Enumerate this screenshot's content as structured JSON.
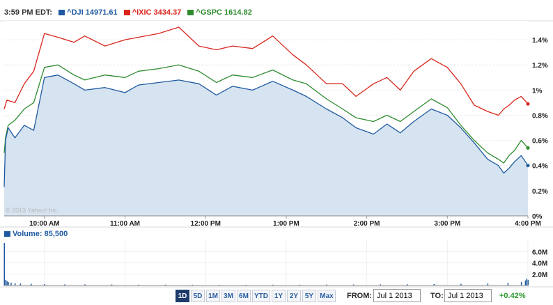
{
  "header": {
    "time": "3:59 PM EDT:",
    "legend": [
      {
        "label": "^DJI 14971.61",
        "color": "#1f5aa0"
      },
      {
        "label": "^IXIC 3434.37",
        "color": "#d9261c"
      },
      {
        "label": "^GSPC 1614.82",
        "color": "#2e8b2e"
      }
    ]
  },
  "watermark": "© 2013 Yahoo! Inc.",
  "volume_label": "Volume: 85,500",
  "controls": {
    "ranges": [
      "1D",
      "5D",
      "1M",
      "3M",
      "6M",
      "YTD",
      "1Y",
      "2Y",
      "5Y",
      "Max"
    ],
    "active_range": "1D",
    "from_label": "FROM:",
    "from_value": "Jul 1 2013",
    "to_label": "TO:",
    "to_value": "Jul 1 2013",
    "change": "+0.42%"
  },
  "chart_data": [
    {
      "type": "line",
      "title": "",
      "x_ticks": [
        "10:00 AM",
        "11:00 AM",
        "12:00 PM",
        "1:00 PM",
        "2:00 PM",
        "3:00 PM",
        "4:00 PM"
      ],
      "y_ticks": [
        "0%",
        "0.2%",
        "0.4%",
        "0.6%",
        "0.8%",
        "1%",
        "1.2%",
        "1.4%"
      ],
      "ylim": [
        0,
        1.55
      ],
      "x_unit": "minutes after 9:30 AM",
      "xlim": [
        0,
        390
      ],
      "series": [
        {
          "name": "^DJI",
          "color": "#1f5aa0",
          "fill": "#d6e3f0",
          "x": [
            0,
            1,
            3,
            8,
            15,
            22,
            30,
            40,
            52,
            60,
            75,
            90,
            100,
            115,
            130,
            145,
            158,
            170,
            185,
            200,
            215,
            225,
            240,
            252,
            262,
            275,
            285,
            295,
            305,
            318,
            330,
            340,
            350,
            360,
            368,
            372,
            376,
            380,
            385,
            390
          ],
          "y": [
            0.23,
            0.6,
            0.7,
            0.62,
            0.72,
            0.68,
            1.1,
            1.12,
            1.05,
            1.0,
            1.02,
            0.98,
            1.04,
            1.06,
            1.08,
            1.05,
            0.96,
            1.03,
            1.0,
            1.07,
            1.0,
            0.95,
            0.85,
            0.78,
            0.7,
            0.65,
            0.73,
            0.66,
            0.75,
            0.85,
            0.8,
            0.7,
            0.58,
            0.45,
            0.4,
            0.34,
            0.38,
            0.43,
            0.48,
            0.4
          ]
        },
        {
          "name": "^IXIC",
          "color": "#d9261c",
          "x": [
            0,
            2,
            8,
            15,
            22,
            30,
            40,
            52,
            60,
            75,
            90,
            100,
            115,
            130,
            145,
            158,
            170,
            185,
            200,
            215,
            225,
            240,
            252,
            262,
            275,
            285,
            295,
            305,
            318,
            330,
            340,
            350,
            360,
            368,
            372,
            376,
            380,
            385,
            390
          ],
          "y": [
            0.85,
            0.92,
            0.9,
            1.05,
            1.15,
            1.45,
            1.42,
            1.38,
            1.43,
            1.35,
            1.4,
            1.42,
            1.45,
            1.5,
            1.35,
            1.32,
            1.35,
            1.33,
            1.43,
            1.28,
            1.2,
            1.05,
            1.05,
            0.95,
            1.05,
            1.1,
            1.0,
            1.15,
            1.25,
            1.18,
            1.05,
            0.88,
            0.83,
            0.8,
            0.85,
            0.88,
            0.92,
            0.95,
            0.89
          ]
        },
        {
          "name": "^GSPC",
          "color": "#2e8b2e",
          "x": [
            0,
            1,
            3,
            8,
            15,
            22,
            30,
            40,
            52,
            60,
            75,
            90,
            100,
            115,
            130,
            145,
            158,
            170,
            185,
            200,
            215,
            225,
            240,
            252,
            262,
            275,
            285,
            295,
            305,
            318,
            330,
            340,
            350,
            360,
            368,
            372,
            376,
            380,
            385,
            390
          ],
          "y": [
            0.5,
            0.62,
            0.72,
            0.76,
            0.85,
            0.9,
            1.18,
            1.2,
            1.12,
            1.08,
            1.12,
            1.1,
            1.15,
            1.17,
            1.2,
            1.15,
            1.06,
            1.12,
            1.1,
            1.16,
            1.08,
            1.05,
            0.93,
            0.85,
            0.78,
            0.75,
            0.8,
            0.75,
            0.83,
            0.93,
            0.86,
            0.72,
            0.6,
            0.5,
            0.45,
            0.42,
            0.48,
            0.52,
            0.6,
            0.54
          ]
        }
      ]
    },
    {
      "type": "bar",
      "title": "Volume: 85,500",
      "y_ticks": [
        "2.0M",
        "4.0M",
        "6.0M"
      ],
      "ylim": [
        0,
        8
      ],
      "y_unit": "millions",
      "color": "#1f5aa0",
      "x": [
        0,
        1,
        2,
        3,
        5,
        8,
        12,
        20,
        30,
        45,
        60,
        80,
        100,
        120,
        140,
        160,
        180,
        200,
        220,
        240,
        260,
        280,
        300,
        320,
        340,
        360,
        375,
        385,
        388,
        389,
        390
      ],
      "values": [
        7.5,
        1.0,
        0.8,
        0.6,
        0.5,
        0.4,
        0.35,
        0.3,
        0.25,
        0.2,
        0.2,
        0.18,
        0.15,
        0.15,
        0.14,
        0.13,
        0.13,
        0.14,
        0.15,
        0.17,
        0.18,
        0.2,
        0.22,
        0.25,
        0.3,
        0.35,
        0.45,
        0.6,
        0.9,
        1.2,
        1.0
      ]
    }
  ]
}
